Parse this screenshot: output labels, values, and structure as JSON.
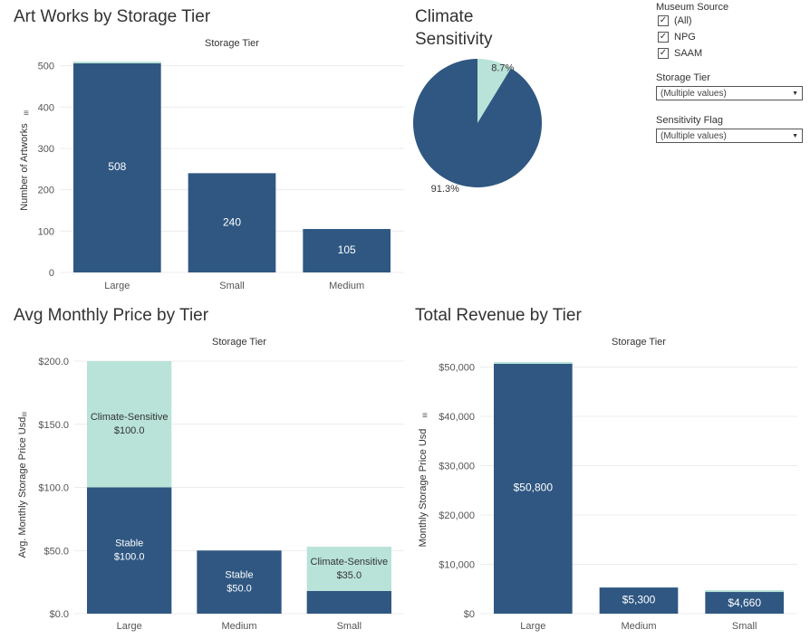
{
  "filters": {
    "museum_source": {
      "title": "Museum Source",
      "options": [
        {
          "label": "(All)",
          "checked": true
        },
        {
          "label": "NPG",
          "checked": true
        },
        {
          "label": "SAAM",
          "checked": true
        }
      ]
    },
    "storage_tier": {
      "title": "Storage Tier",
      "value": "(Multiple values)"
    },
    "sensitivity_flag": {
      "title": "Sensitivity Flag",
      "value": "(Multiple values)"
    }
  },
  "colors": {
    "stable": "#2F5782",
    "climate_sensitive": "#B9E3D8",
    "grid": "#ececec",
    "axis_text": "#555555"
  },
  "chart_data": [
    {
      "id": "artworks",
      "type": "bar",
      "title": "Art Works by Storage Tier",
      "column_header": "Storage Tier",
      "ylabel": "Number of Artworks",
      "categories": [
        "Large",
        "Small",
        "Medium"
      ],
      "values": [
        508,
        240,
        105
      ],
      "top_segment_values": [
        2,
        0,
        0
      ],
      "labels": [
        "508",
        "240",
        "105"
      ],
      "yticks": [
        0,
        100,
        200,
        300,
        400,
        500
      ],
      "ytick_labels": [
        "0",
        "100",
        "200",
        "300",
        "400",
        "500"
      ],
      "ylim": [
        0,
        510
      ]
    },
    {
      "id": "sensitivity",
      "type": "pie",
      "title": "Climate Sensitivity",
      "slices": [
        {
          "name": "Climate-Sensitive",
          "value": 8.7,
          "label": "8.7%"
        },
        {
          "name": "Stable",
          "value": 91.3,
          "label": "91.3%"
        }
      ]
    },
    {
      "id": "avgprice",
      "type": "bar",
      "stacked": true,
      "title": "Avg Monthly Price by Tier",
      "column_header": "Storage Tier",
      "ylabel": "Avg. Monthly Storage Price Usd",
      "categories": [
        "Large",
        "Medium",
        "Small"
      ],
      "series": [
        {
          "name": "Stable",
          "values": [
            100,
            50,
            18
          ],
          "labels": [
            "Stable\n$100.0",
            "Stable\n$50.0",
            ""
          ]
        },
        {
          "name": "Climate-Sensitive",
          "values": [
            100,
            0,
            35
          ],
          "labels": [
            "Climate-Sensitive\n$100.0",
            "",
            "Climate-Sensitive\n$35.0"
          ]
        }
      ],
      "yticks": [
        0,
        50,
        100,
        150,
        200
      ],
      "ytick_labels": [
        "$0.0",
        "$50.0",
        "$100.0",
        "$150.0",
        "$200.0"
      ],
      "ylim": [
        0,
        200
      ]
    },
    {
      "id": "revenue",
      "type": "bar",
      "title": "Total Revenue by Tier",
      "column_header": "Storage Tier",
      "ylabel": "Monthly Storage Price Usd",
      "categories": [
        "Large",
        "Medium",
        "Small"
      ],
      "values": [
        50800,
        5300,
        4660
      ],
      "top_segment_values": [
        200,
        0,
        100
      ],
      "labels": [
        "$50,800",
        "$5,300",
        "$4,660"
      ],
      "yticks": [
        0,
        10000,
        20000,
        30000,
        40000,
        50000
      ],
      "ytick_labels": [
        "$0",
        "$10,000",
        "$20,000",
        "$30,000",
        "$40,000",
        "$50,000"
      ],
      "ylim": [
        0,
        51000
      ]
    }
  ]
}
